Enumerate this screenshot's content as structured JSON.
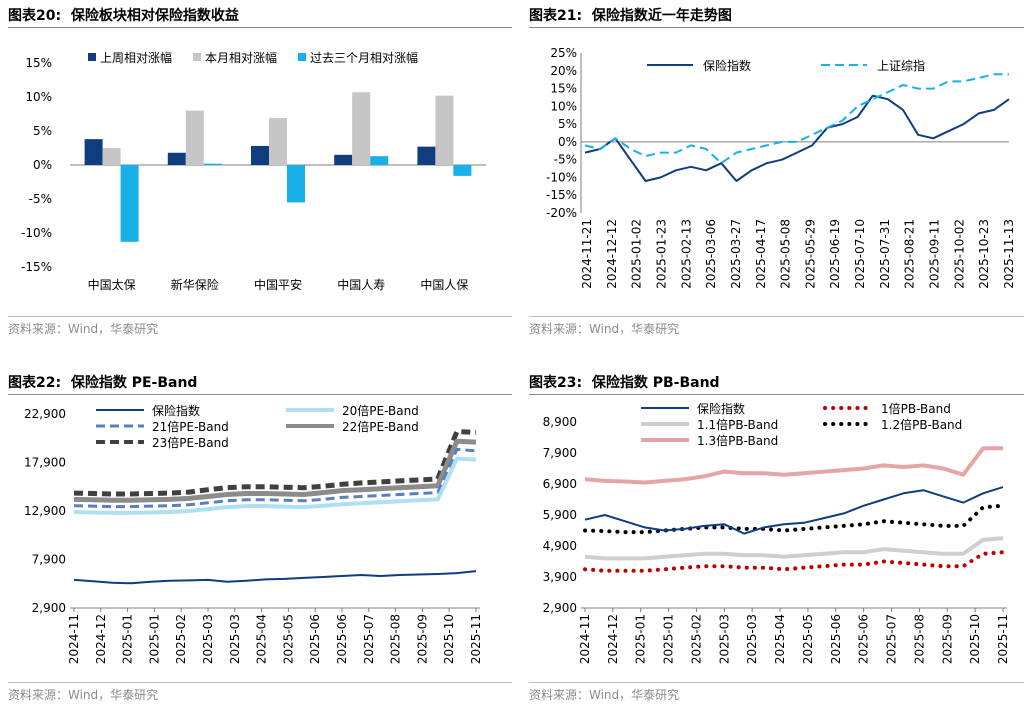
{
  "source_text": "资料来源：Wind，华泰研究",
  "colors": {
    "navy": "#0f3d80",
    "gray": "#c6c6c6",
    "cyan": "#19b0ea",
    "light_cyan": "#aedff2",
    "blue_dash": "#5a7fbf",
    "dark_gray": "#8c8c8c",
    "dark_dash": "#404040",
    "red_dot": "#c00000",
    "black": "#000000",
    "pink": "#e6a5a5",
    "light_gray": "#cfcfcf"
  },
  "chart_data": [
    {
      "id": "fig20",
      "title_prefix": "图表20:",
      "title": "保险板块相对保险指数收益",
      "type": "bar",
      "categories": [
        "中国太保",
        "新华保险",
        "中国平安",
        "中国人寿",
        "中国人保"
      ],
      "series": [
        {
          "name": "上周相对涨幅",
          "color": "#0f3d80",
          "values": [
            3.8,
            1.8,
            2.8,
            1.5,
            2.7
          ]
        },
        {
          "name": "本月相对涨幅",
          "color": "#c6c6c6",
          "values": [
            2.5,
            8.0,
            6.9,
            10.7,
            10.2
          ]
        },
        {
          "name": "过去三个月相对涨幅",
          "color": "#19b0ea",
          "values": [
            -11.3,
            0.2,
            -5.5,
            1.3,
            -1.6
          ]
        }
      ],
      "ylim": [
        -15,
        15
      ],
      "yticks": [
        15,
        10,
        5,
        0,
        -5,
        -10,
        -15
      ],
      "ytick_labels": [
        "15%",
        "10%",
        "5%",
        "0%",
        "-5%",
        "-10%",
        "-15%"
      ]
    },
    {
      "id": "fig21",
      "title_prefix": "图表21:",
      "title": "保险指数近一年走势图",
      "type": "line",
      "x_labels": [
        "2024-11-21",
        "2024-12-12",
        "2025-01-02",
        "2025-01-23",
        "2025-02-13",
        "2025-03-06",
        "2025-03-27",
        "2025-04-17",
        "2025-05-08",
        "2025-05-29",
        "2025-06-19",
        "2025-07-10",
        "2025-07-31",
        "2025-08-21",
        "2025-09-11",
        "2025-10-02",
        "2025-10-23",
        "2025-11-13"
      ],
      "series": [
        {
          "name": "保险指数",
          "style": "solid",
          "color": "#0f3d80",
          "values": [
            -3,
            -2,
            1,
            -5,
            -11,
            -10,
            -8,
            -7,
            -8,
            -6,
            -11,
            -8,
            -6,
            -5,
            -3,
            -1,
            4,
            5,
            7,
            13,
            12,
            9,
            2,
            1,
            3,
            5,
            8,
            9,
            12
          ]
        },
        {
          "name": "上证综指",
          "style": "dash",
          "color": "#19b0ea",
          "values": [
            -1,
            -2,
            1,
            -2,
            -4,
            -3,
            -3,
            -1,
            -2,
            -6,
            -3,
            -2,
            -1,
            0,
            0,
            2,
            4,
            6,
            10,
            12,
            14,
            16,
            15,
            15,
            17,
            17,
            18,
            19,
            19
          ]
        }
      ],
      "ylim": [
        -20,
        25
      ],
      "ytick_labels": [
        "25%",
        "20%",
        "15%",
        "10%",
        "5%",
        "0%",
        "-5%",
        "-10%",
        "-15%",
        "-20%"
      ]
    },
    {
      "id": "fig22",
      "title_prefix": "图表22:",
      "title": "保险指数 PE-Band",
      "type": "line",
      "x_labels": [
        "2024-11",
        "2024-12",
        "2025-01",
        "2025-01",
        "2025-02",
        "2025-03",
        "2025-03",
        "2025-04",
        "2025-05",
        "2025-06",
        "2025-06",
        "2025-07",
        "2025-08",
        "2025-09",
        "2025-10",
        "2025-11"
      ],
      "legend_order": [
        0,
        1,
        2,
        3,
        4
      ],
      "series": [
        {
          "name": "保险指数",
          "style": "solid",
          "width": 2,
          "color": "#0f3d80",
          "values": [
            5800,
            5650,
            5500,
            5450,
            5600,
            5700,
            5750,
            5800,
            5600,
            5700,
            5850,
            5900,
            6000,
            6100,
            6200,
            6300,
            6200,
            6300,
            6350,
            6400,
            6500,
            6700
          ]
        },
        {
          "name": "20倍PE-Band",
          "style": "solid",
          "width": 4,
          "color": "#aedff2",
          "values": [
            12800,
            12750,
            12700,
            12700,
            12750,
            12800,
            12900,
            13100,
            13300,
            13400,
            13400,
            13350,
            13300,
            13450,
            13600,
            13700,
            13800,
            13900,
            14000,
            14100,
            18300,
            18200
          ]
        },
        {
          "name": "21倍PE-Band",
          "style": "dash",
          "width": 3,
          "color": "#5a7fbf",
          "values": [
            13450,
            13400,
            13350,
            13350,
            13400,
            13450,
            13550,
            13750,
            13950,
            14050,
            14050,
            14000,
            13950,
            14100,
            14300,
            14400,
            14500,
            14600,
            14700,
            14800,
            19250,
            19100
          ]
        },
        {
          "name": "22倍PE-Band",
          "style": "solid",
          "width": 5,
          "color": "#8c8c8c",
          "values": [
            14100,
            14050,
            14000,
            14000,
            14050,
            14100,
            14200,
            14400,
            14600,
            14700,
            14700,
            14650,
            14600,
            14800,
            15000,
            15100,
            15200,
            15300,
            15400,
            15500,
            20100,
            20000
          ]
        },
        {
          "name": "23倍PE-Band",
          "style": "dash",
          "width": 5,
          "color": "#404040",
          "values": [
            14750,
            14700,
            14650,
            14650,
            14700,
            14750,
            14850,
            15100,
            15300,
            15400,
            15400,
            15350,
            15300,
            15450,
            15650,
            15800,
            15900,
            16000,
            16100,
            16200,
            21100,
            21000
          ]
        }
      ],
      "ylim": [
        2900,
        22900
      ],
      "yticks": [
        22900,
        17900,
        12900,
        7900,
        2900
      ],
      "ytick_labels": [
        "22,900",
        "17,900",
        "12,900",
        "7,900",
        "2,900"
      ]
    },
    {
      "id": "fig23",
      "title_prefix": "图表23:",
      "title": "保险指数 PB-Band",
      "type": "line",
      "x_labels": [
        "2024-11",
        "2024-12",
        "2025-01",
        "2025-01",
        "2025-02",
        "2025-03",
        "2025-03",
        "2025-04",
        "2025-05",
        "2025-06",
        "2025-06",
        "2025-07",
        "2025-08",
        "2025-09",
        "2025-10",
        "2025-11"
      ],
      "series": [
        {
          "name": "保险指数",
          "style": "solid",
          "width": 2,
          "color": "#0f3d80",
          "values": [
            5750,
            5900,
            5700,
            5500,
            5400,
            5450,
            5550,
            5600,
            5300,
            5500,
            5600,
            5650,
            5800,
            5950,
            6200,
            6400,
            6600,
            6700,
            6500,
            6300,
            6600,
            6800
          ]
        },
        {
          "name": "1倍PB-Band",
          "style": "dot",
          "width": 4,
          "color": "#c00000",
          "values": [
            4150,
            4100,
            4100,
            4100,
            4150,
            4200,
            4250,
            4250,
            4200,
            4200,
            4150,
            4200,
            4250,
            4300,
            4300,
            4400,
            4350,
            4300,
            4250,
            4250,
            4650,
            4700
          ]
        },
        {
          "name": "1.1倍PB-Band",
          "style": "solid",
          "width": 4,
          "color": "#cfcfcf",
          "values": [
            4550,
            4500,
            4500,
            4500,
            4550,
            4600,
            4650,
            4650,
            4600,
            4600,
            4550,
            4600,
            4650,
            4700,
            4700,
            4800,
            4750,
            4700,
            4650,
            4650,
            5100,
            5150
          ]
        },
        {
          "name": "1.2倍PB-Band",
          "style": "dot",
          "width": 4,
          "color": "#000000",
          "values": [
            5400,
            5380,
            5350,
            5350,
            5400,
            5450,
            5500,
            5500,
            5450,
            5450,
            5400,
            5450,
            5500,
            5550,
            5600,
            5700,
            5650,
            5600,
            5550,
            5550,
            6150,
            6200
          ]
        },
        {
          "name": "1.3倍PB-Band",
          "style": "solid",
          "width": 4,
          "color": "#e6a5a5",
          "values": [
            7050,
            7000,
            6980,
            6950,
            7000,
            7050,
            7150,
            7300,
            7250,
            7250,
            7200,
            7250,
            7300,
            7350,
            7400,
            7500,
            7450,
            7500,
            7400,
            7200,
            8050,
            8050
          ]
        }
      ],
      "ylim": [
        2900,
        8900
      ],
      "yticks": [
        8900,
        7900,
        6900,
        5900,
        4900,
        3900,
        2900
      ],
      "ytick_labels": [
        "8,900",
        "7,900",
        "6,900",
        "5,900",
        "4,900",
        "3,900",
        "2,900"
      ]
    }
  ]
}
